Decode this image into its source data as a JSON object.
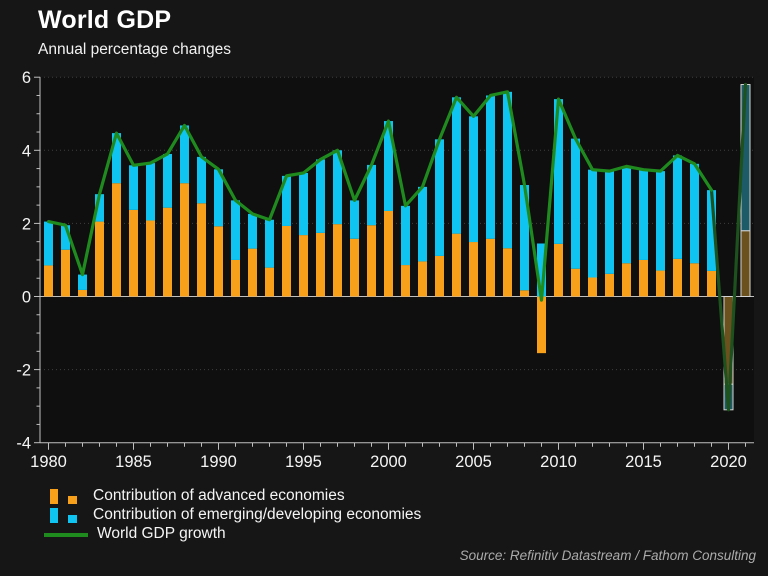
{
  "header": {
    "title": "World GDP",
    "subtitle": "Annual percentage changes"
  },
  "source": "Source: Refinitiv Datastream / Fathom Consulting",
  "legend": [
    {
      "label": "Contribution of advanced economies",
      "color": "#f9a01b",
      "type": "bar"
    },
    {
      "label": "Contribution of emerging/developing economies",
      "color": "#10c4f2",
      "type": "bar"
    },
    {
      "label": "World GDP growth",
      "color": "#1f8b1f",
      "type": "line"
    }
  ],
  "colors": {
    "advanced": "#f9a01b",
    "emerging": "#10c4f2",
    "line": "#1f8b1f",
    "line_forecast": "#1d511d",
    "advanced_forecast": "#6a511e",
    "emerging_forecast": "#1d5b68",
    "forecast_border": "#d4d4d4",
    "axis": "#c0c0c0",
    "grid": "#3f3f3f",
    "tick_text": "#f5f5f5",
    "plot_bg": "#0f0f0f"
  },
  "chart_data": {
    "type": "bar",
    "subtype": "stacked-bars-with-line",
    "title": "World GDP",
    "subtitle": "Annual percentage changes",
    "xlabel": "",
    "ylabel": "Annual percentage changes",
    "ylim": [
      -4,
      6
    ],
    "y_ticks": [
      6,
      4,
      2,
      0,
      -2,
      -4
    ],
    "y_minor_step": 0.5,
    "x_tick_labels": [
      "1980",
      "1985",
      "1990",
      "1995",
      "2000",
      "2005",
      "2010",
      "2015",
      "2020"
    ],
    "grid": "dotted horizontal at -2, 2, 4, 6",
    "legend_position": "bottom-left",
    "x": [
      1980,
      1981,
      1982,
      1983,
      1984,
      1985,
      1986,
      1987,
      1988,
      1989,
      1990,
      1991,
      1992,
      1993,
      1994,
      1995,
      1996,
      1997,
      1998,
      1999,
      2000,
      2001,
      2002,
      2003,
      2004,
      2005,
      2006,
      2007,
      2008,
      2009,
      2010,
      2011,
      2012,
      2013,
      2014,
      2015,
      2016,
      2017,
      2018,
      2019,
      2020,
      2021
    ],
    "forecast_years": [
      2020,
      2021
    ],
    "series": [
      {
        "name": "Contribution of advanced economies",
        "values": [
          0.85,
          1.28,
          0.18,
          2.05,
          3.1,
          2.37,
          2.08,
          2.43,
          3.1,
          2.55,
          1.92,
          1.0,
          1.31,
          0.79,
          1.93,
          1.68,
          1.74,
          1.98,
          1.58,
          1.95,
          2.34,
          0.86,
          0.96,
          1.11,
          1.72,
          1.49,
          1.58,
          1.32,
          0.17,
          -1.55,
          1.44,
          0.76,
          0.52,
          0.62,
          0.91,
          1.0,
          0.71,
          1.03,
          0.91,
          0.7,
          -2.4,
          1.8
        ]
      },
      {
        "name": "Contribution of emerging/developing economies",
        "values": [
          1.2,
          0.67,
          0.42,
          0.75,
          1.37,
          1.22,
          1.57,
          1.47,
          1.58,
          1.27,
          1.56,
          1.63,
          0.95,
          1.31,
          1.37,
          1.7,
          2.01,
          2.02,
          1.05,
          1.65,
          2.46,
          1.62,
          2.04,
          3.19,
          3.73,
          3.44,
          3.92,
          4.28,
          2.88,
          1.45,
          3.96,
          3.56,
          2.95,
          2.81,
          2.65,
          2.47,
          2.72,
          2.83,
          2.72,
          2.21,
          -0.7,
          4.0
        ]
      },
      {
        "name": "World GDP growth",
        "values": [
          2.05,
          1.95,
          0.6,
          2.8,
          4.47,
          3.59,
          3.65,
          3.9,
          4.68,
          3.82,
          3.48,
          2.63,
          2.26,
          2.1,
          3.3,
          3.38,
          3.75,
          4.0,
          2.63,
          3.6,
          4.8,
          2.48,
          3.0,
          4.3,
          5.45,
          4.93,
          5.5,
          5.6,
          3.05,
          -0.1,
          5.4,
          4.32,
          3.47,
          3.43,
          3.56,
          3.47,
          3.43,
          3.86,
          3.63,
          2.91,
          -3.1,
          5.8
        ]
      }
    ]
  }
}
